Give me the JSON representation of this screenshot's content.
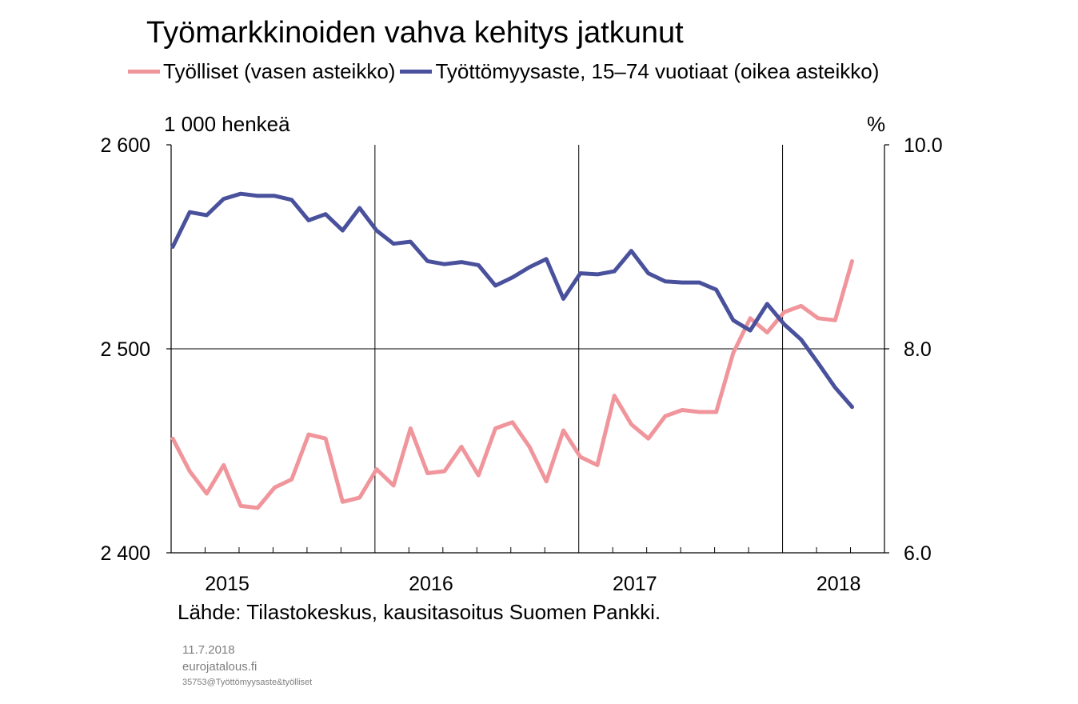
{
  "chart_data": {
    "type": "line",
    "title": "Työmarkkinoiden vahva kehitys jatkunut",
    "left_axis_label": "1 000 henkeä",
    "right_axis_label": "%",
    "left_ylim": [
      2400,
      2600
    ],
    "right_ylim": [
      6.0,
      10.0
    ],
    "left_ticks": [
      "2 400",
      "2 500",
      "2 600"
    ],
    "right_ticks": [
      "6.0",
      "8.0",
      "10.0"
    ],
    "x_tick_labels": [
      "2015",
      "2016",
      "2017",
      "2018"
    ],
    "x_range": [
      "2015-01",
      "2018-07"
    ],
    "grid": true,
    "legend_position": "top",
    "source": "Lähde: Tilastokeskus, kausitasoitus Suomen Pankki.",
    "footer": {
      "date": "11.7.2018",
      "site": "eurojatalous.fi",
      "code": "35753@Työttömyysaste&työlliset"
    },
    "x": [
      "2015-01",
      "2015-02",
      "2015-03",
      "2015-04",
      "2015-05",
      "2015-06",
      "2015-07",
      "2015-08",
      "2015-09",
      "2015-10",
      "2015-11",
      "2015-12",
      "2016-01",
      "2016-02",
      "2016-03",
      "2016-04",
      "2016-05",
      "2016-06",
      "2016-07",
      "2016-08",
      "2016-09",
      "2016-10",
      "2016-11",
      "2016-12",
      "2017-01",
      "2017-02",
      "2017-03",
      "2017-04",
      "2017-05",
      "2017-06",
      "2017-07",
      "2017-08",
      "2017-09",
      "2017-10",
      "2017-11",
      "2017-12",
      "2018-01",
      "2018-02",
      "2018-03",
      "2018-04",
      "2018-05"
    ],
    "series": [
      {
        "name": "Työlliset (vasen asteikko)",
        "axis": "left",
        "color": "#F0959B",
        "values": [
          2456,
          2440,
          2429,
          2443,
          2423,
          2422,
          2432,
          2436,
          2458,
          2456,
          2425,
          2427,
          2441,
          2433,
          2461,
          2439,
          2440,
          2452,
          2438,
          2461,
          2464,
          2452,
          2435,
          2460,
          2447,
          2443,
          2477,
          2463,
          2456,
          2467,
          2470,
          2469,
          2469,
          2498,
          2515,
          2508,
          2518,
          2521,
          2515,
          2514,
          2543
        ]
      },
      {
        "name": "Työttömyysaste, 15–74 vuotiaat (oikea asteikko)",
        "axis": "right",
        "color": "#4A519C",
        "values": [
          9.0,
          9.34,
          9.31,
          9.47,
          9.52,
          9.5,
          9.5,
          9.46,
          9.26,
          9.32,
          9.16,
          9.38,
          9.16,
          9.03,
          9.05,
          8.86,
          8.83,
          8.85,
          8.82,
          8.62,
          8.7,
          8.8,
          8.88,
          8.49,
          8.74,
          8.73,
          8.76,
          8.96,
          8.74,
          8.66,
          8.65,
          8.65,
          8.58,
          8.28,
          8.18,
          8.44,
          8.24,
          8.09,
          7.86,
          7.62,
          7.43
        ]
      }
    ]
  }
}
